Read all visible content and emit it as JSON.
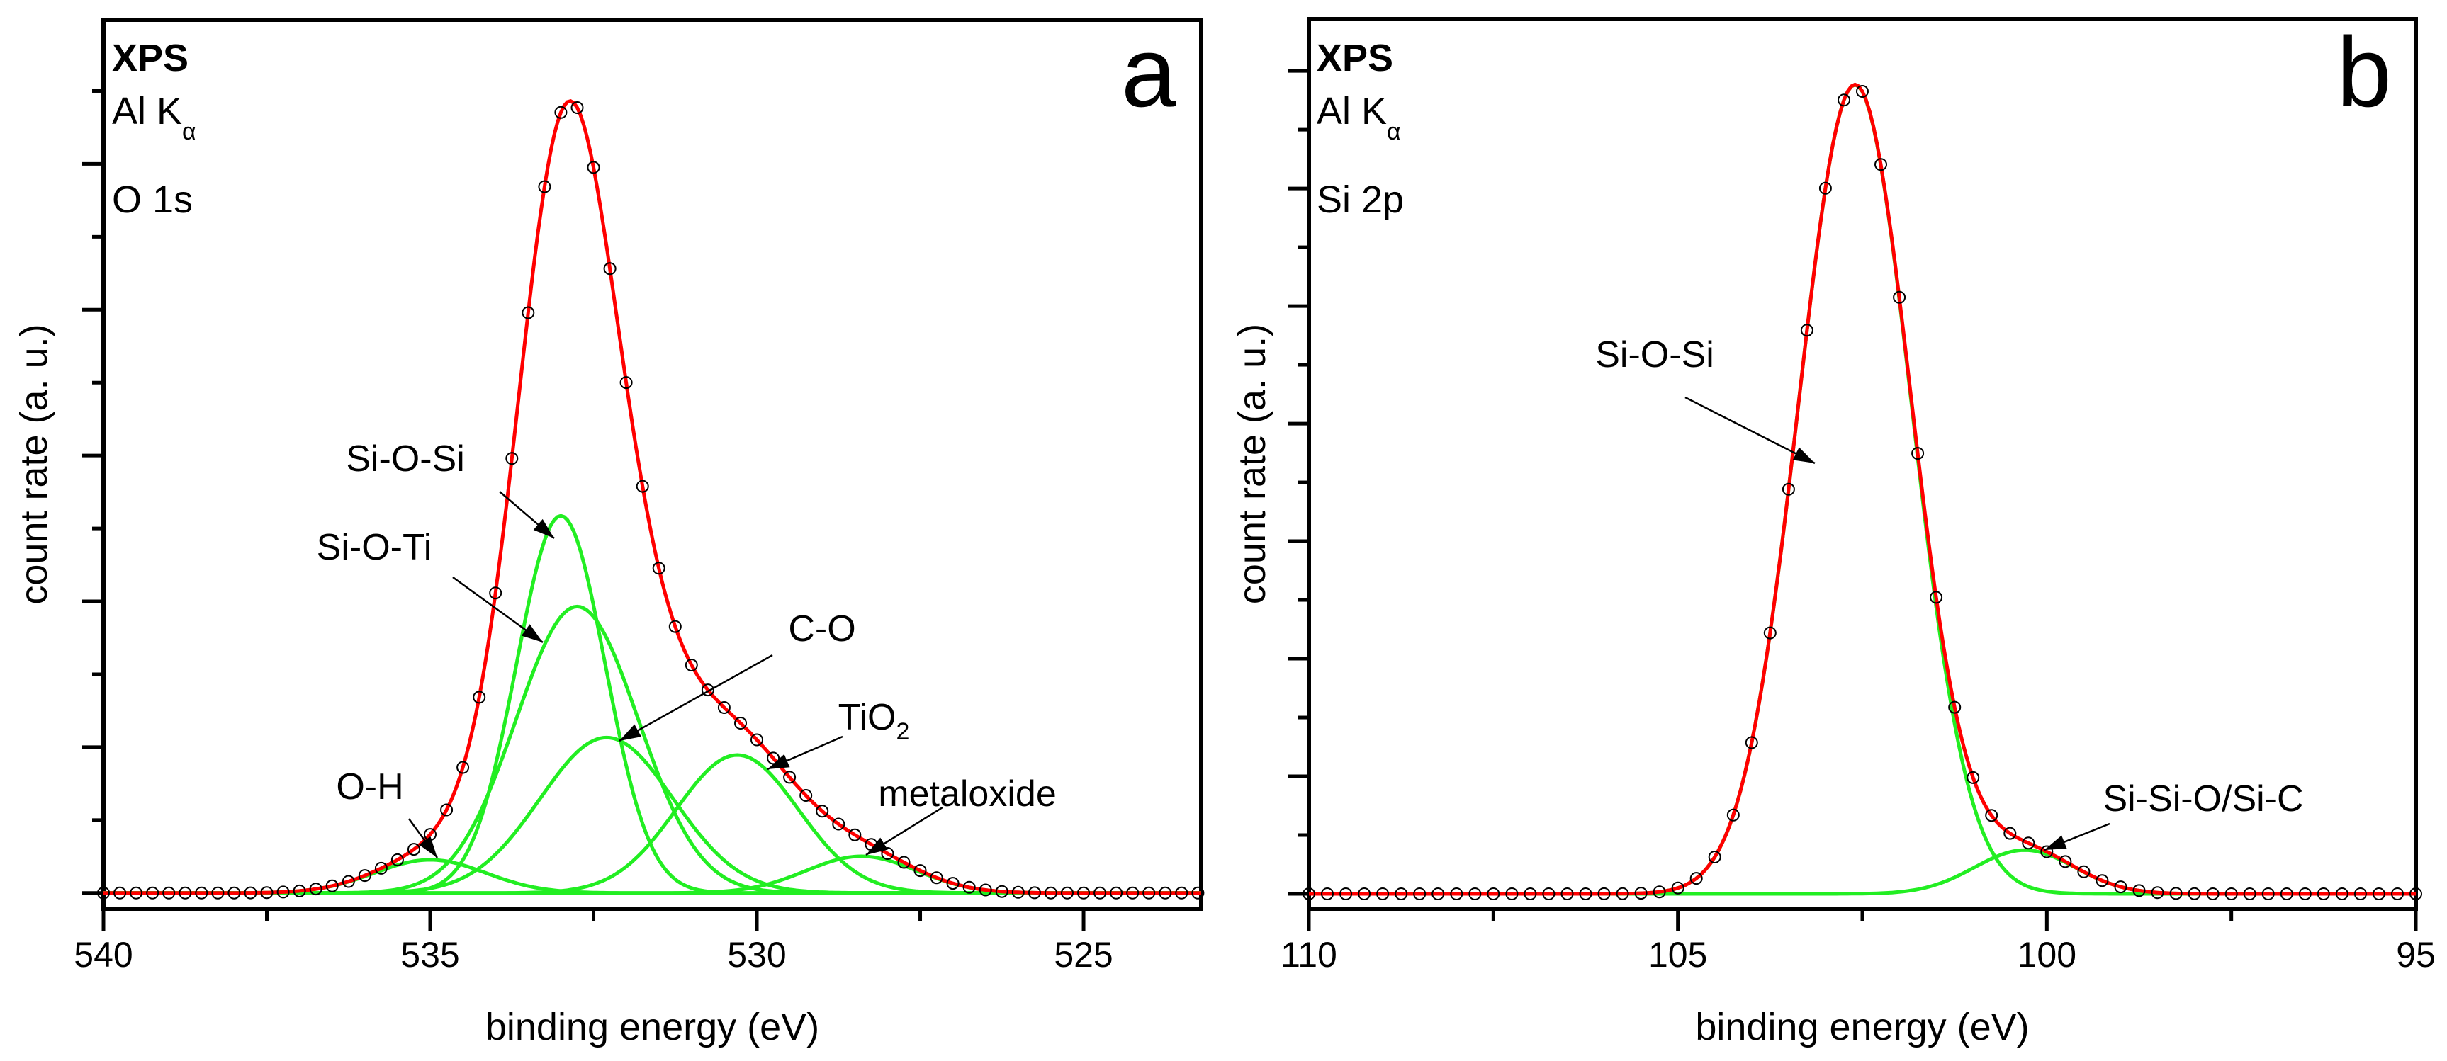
{
  "chart_data": [
    {
      "type": "line",
      "panel_letter": "a",
      "header": {
        "technique": "XPS",
        "source": "Al K",
        "source_sub": "α",
        "region": "O 1s"
      },
      "xlabel": "binding energy (eV)",
      "ylabel": "count rate (a. u.)",
      "xlim": [
        540,
        523.2
      ],
      "ylim": [
        -0.018,
        1.0
      ],
      "xticks": [
        540,
        535,
        530,
        525
      ],
      "xminor_step": 2.5,
      "ytick_step": 0.0835,
      "ytick_labels": false,
      "series": [
        {
          "name": "measured",
          "style": "open-circles",
          "x_start": 540,
          "x_end": 523.25,
          "x_step": 0.25
        },
        {
          "name": "envelope fit",
          "style": "line",
          "color": "#ff0000"
        }
      ],
      "components_color": "#22ee22",
      "components": [
        {
          "label": "Si-O-Si",
          "center": 533.0,
          "height": 0.432,
          "fwhm": 1.6
        },
        {
          "label": "Si-O-Ti",
          "center": 532.75,
          "height": 0.328,
          "fwhm": 2.2
        },
        {
          "label": "C-O",
          "center": 532.3,
          "height": 0.178,
          "fwhm": 2.4
        },
        {
          "label": "TiO",
          "label_sub": "2",
          "center": 530.3,
          "height": 0.158,
          "fwhm": 2.2
        },
        {
          "label": "O-H",
          "center": 535.0,
          "height": 0.038,
          "fwhm": 2.0
        },
        {
          "label": "metaloxide",
          "center": 528.4,
          "height": 0.042,
          "fwhm": 2.0
        }
      ]
    },
    {
      "type": "line",
      "panel_letter": "b",
      "header": {
        "technique": "XPS",
        "source": "Al K",
        "source_sub": "α",
        "region": "Si 2p"
      },
      "xlabel": "binding energy (eV)",
      "ylabel": "count rate (a. u.)",
      "xlim": [
        110,
        95
      ],
      "ylim": [
        -0.017,
        1.0
      ],
      "xticks": [
        110,
        105,
        100,
        95
      ],
      "xminor_step": 2.5,
      "ytick_step": 0.0672,
      "ytick_labels": false,
      "series": [
        {
          "name": "measured",
          "style": "open-circles",
          "x_start": 110,
          "x_end": 95,
          "x_step": 0.25
        },
        {
          "name": "envelope fit",
          "style": "line",
          "color": "#ff0000"
        }
      ],
      "components_color": "#22ee22",
      "components": [
        {
          "label": "Si-O-Si",
          "center": 102.6,
          "height": 0.925,
          "fwhm": 1.8
        },
        {
          "label": "Si-Si-O/Si-C",
          "center": 100.3,
          "height": 0.05,
          "fwhm": 1.6
        }
      ]
    }
  ]
}
